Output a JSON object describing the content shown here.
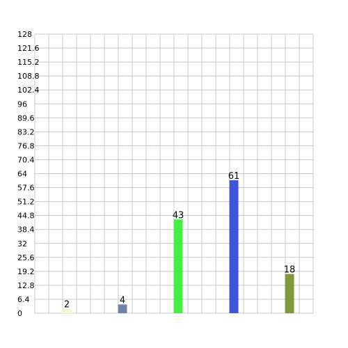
{
  "chart_data": {
    "type": "bar",
    "title": "",
    "xlabel": "",
    "ylabel": "",
    "ylim": [
      0,
      128
    ],
    "yticks": [
      "0",
      "6.4",
      "12.8",
      "19.2",
      "25.6",
      "32",
      "38.4",
      "44.8",
      "51.2",
      "57.6",
      "64",
      "70.4",
      "76.8",
      "83.2",
      "89.6",
      "96",
      "102.4",
      "108.8",
      "115.2",
      "121.6",
      "128"
    ],
    "grid": true,
    "legend": "none",
    "categories": [
      "",
      "",
      "",
      "",
      ""
    ],
    "values": [
      2,
      4,
      43,
      61,
      18
    ],
    "colors": [
      "#e9ffc9",
      "#6a84a8",
      "#44ee44",
      "#3f55d6",
      "#80973c"
    ]
  }
}
